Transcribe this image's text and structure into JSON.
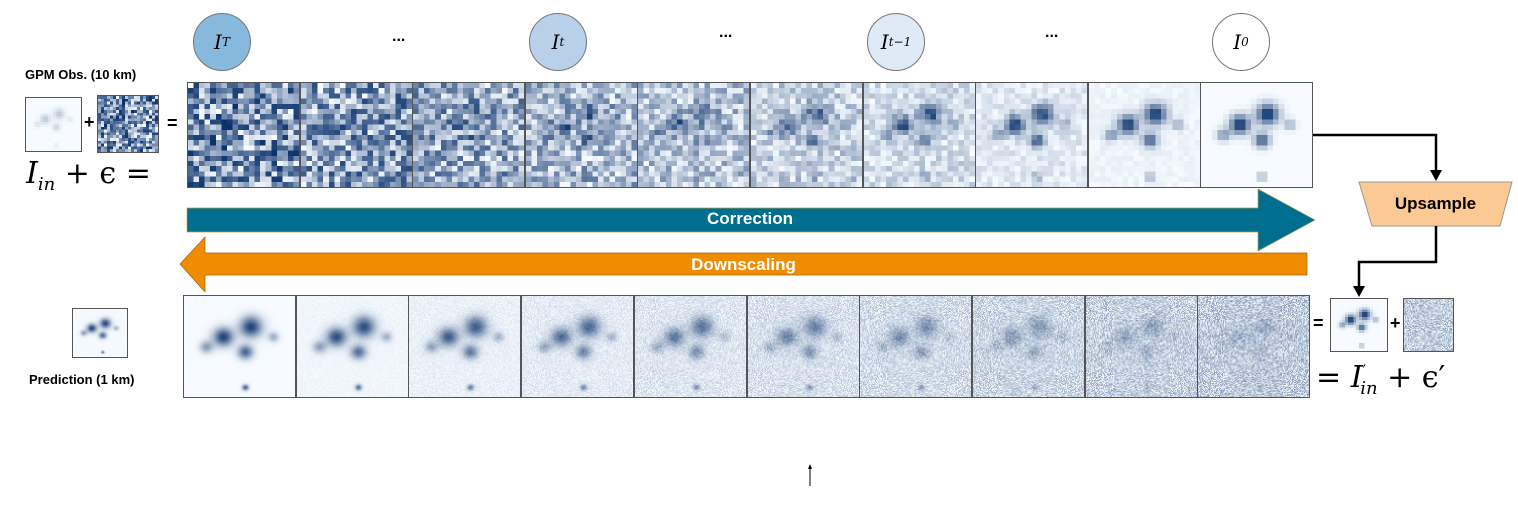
{
  "steps": [
    {
      "symbol": "I",
      "sub": "T",
      "fill": "#86b9dc"
    },
    {
      "symbol": "I",
      "sub": "t",
      "fill": "#b8d0ea"
    },
    {
      "symbol": "I",
      "sub": "t−1",
      "fill": "#deeaf6"
    },
    {
      "symbol": "I",
      "sub": "0",
      "fill": "#ffffff"
    }
  ],
  "ellipsis": "...",
  "left": {
    "obs_label": "GPM Obs. (10 km)",
    "plus": "+",
    "equals": "=",
    "formula": "I_in + ε =",
    "formula_main": "I",
    "formula_sub": "in",
    "formula_rest": " + ϵ =",
    "pred_label": "Prediction (1 km)"
  },
  "arrows": {
    "correction": "Correction",
    "downscaling": "Downscaling",
    "correction_color": "#006e8f",
    "downscaling_color": "#f08c00"
  },
  "upsample": {
    "label": "Upsample",
    "fill": "#fcc995"
  },
  "right": {
    "equals": "=",
    "plus": "+",
    "formula_eq": "= ",
    "formula_main": "I",
    "formula_sup": "′",
    "formula_sub": "in",
    "formula_rest": " + ϵ′"
  }
}
